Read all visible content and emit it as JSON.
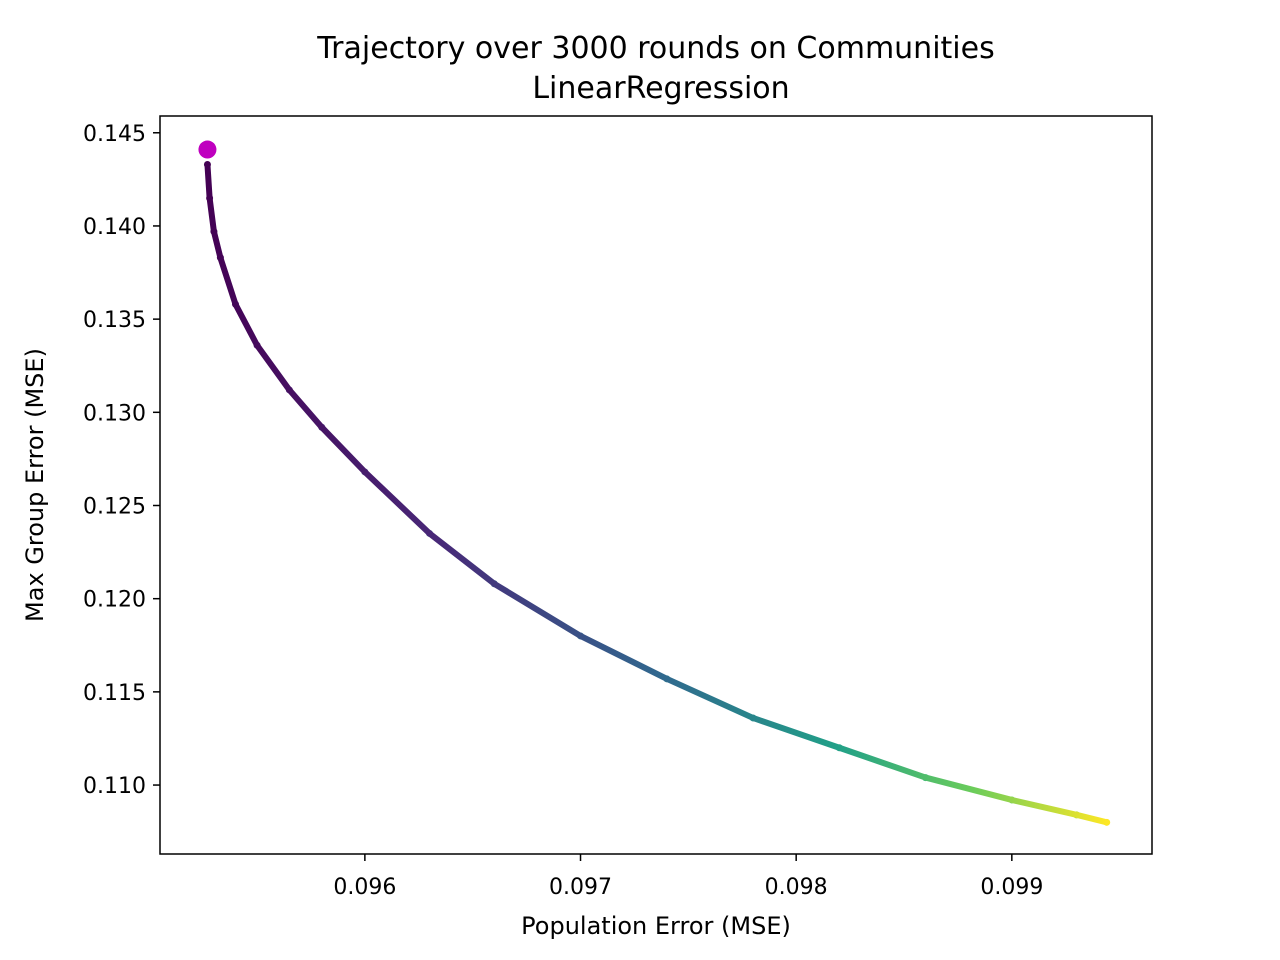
{
  "chart_data": {
    "type": "scatter",
    "title": "Trajectory over 3000 rounds on Communities",
    "subtitle": "LinearRegression",
    "xlabel": "Population Error (MSE)",
    "ylabel": "Max Group Error (MSE)",
    "xlim": [
      0.09505,
      0.09965
    ],
    "ylim": [
      0.1063,
      0.1459
    ],
    "x_ticks": [
      0.096,
      0.097,
      0.098,
      0.099
    ],
    "x_tick_labels": [
      "0.096",
      "0.097",
      "0.098",
      "0.099"
    ],
    "y_ticks": [
      0.11,
      0.115,
      0.12,
      0.125,
      0.13,
      0.135,
      0.14,
      0.145
    ],
    "y_tick_labels": [
      "0.110",
      "0.115",
      "0.120",
      "0.125",
      "0.130",
      "0.135",
      "0.140",
      "0.145"
    ],
    "grid": false,
    "rounds": 3000,
    "colormap": "viridis",
    "start_point": {
      "x": 0.09527,
      "y": 0.1441,
      "color": "#bf00bf"
    },
    "trajectory": {
      "x": [
        0.09527,
        0.09528,
        0.0953,
        0.09533,
        0.0954,
        0.0955,
        0.09565,
        0.0958,
        0.096,
        0.0963,
        0.0966,
        0.097,
        0.0974,
        0.0978,
        0.0982,
        0.0986,
        0.099,
        0.0993,
        0.09944
      ],
      "y": [
        0.1433,
        0.1415,
        0.1397,
        0.1383,
        0.1358,
        0.1336,
        0.1312,
        0.1292,
        0.1268,
        0.1235,
        0.1208,
        0.118,
        0.1157,
        0.1136,
        0.112,
        0.1104,
        0.1092,
        0.1084,
        0.108
      ]
    }
  }
}
